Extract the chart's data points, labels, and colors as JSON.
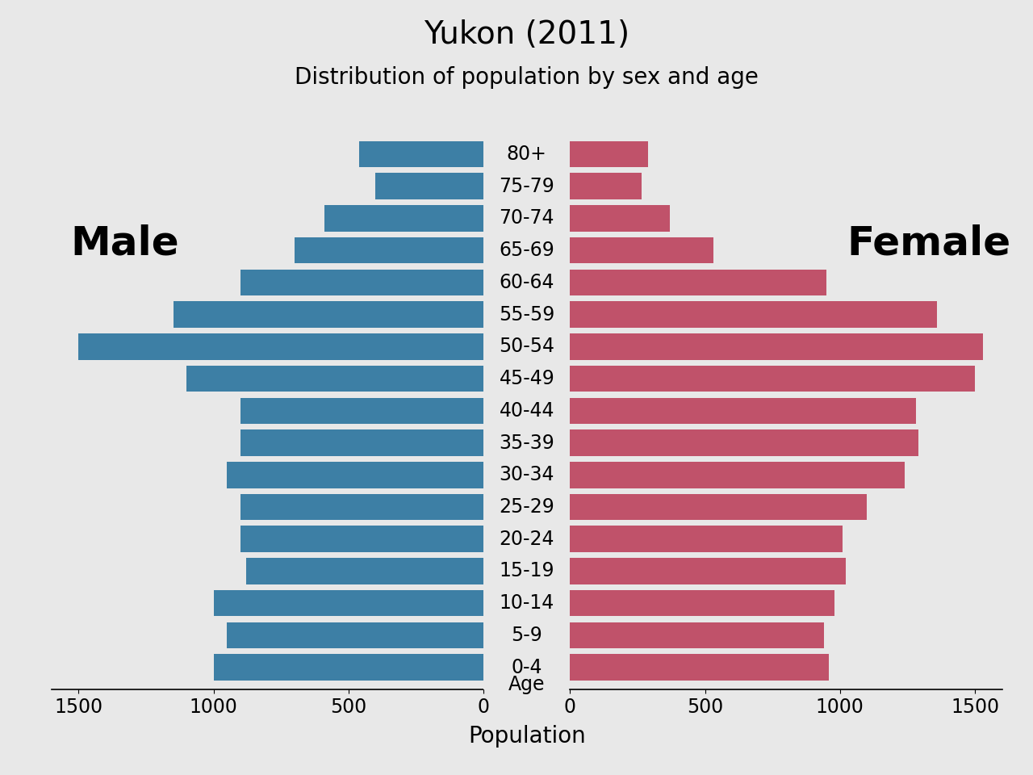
{
  "title": "Yukon (2011)",
  "subtitle": "Distribution of population by sex and age",
  "xlabel": "Population",
  "age_label": "Age",
  "age_groups": [
    "0-4",
    "5-9",
    "10-14",
    "15-19",
    "20-24",
    "25-29",
    "30-34",
    "35-39",
    "40-44",
    "45-49",
    "50-54",
    "55-59",
    "60-64",
    "65-69",
    "70-74",
    "75-79",
    "80+"
  ],
  "male_values": [
    1000,
    950,
    1000,
    880,
    900,
    900,
    950,
    900,
    900,
    1100,
    1500,
    1150,
    900,
    700,
    590,
    400,
    460
  ],
  "female_values": [
    960,
    940,
    980,
    1020,
    1010,
    1100,
    1240,
    1290,
    1280,
    1500,
    1530,
    1360,
    950,
    530,
    370,
    265,
    290
  ],
  "male_color": "#3d7fa5",
  "female_color": "#c0526a",
  "background_color": "#e8e8e8",
  "xlim": 1600,
  "bar_height": 0.82,
  "title_fontsize": 28,
  "subtitle_fontsize": 20,
  "label_fontsize": 20,
  "tick_fontsize": 17,
  "age_label_fontsize": 17,
  "gender_label_fontsize": 36,
  "male_label": "Male",
  "female_label": "Female"
}
